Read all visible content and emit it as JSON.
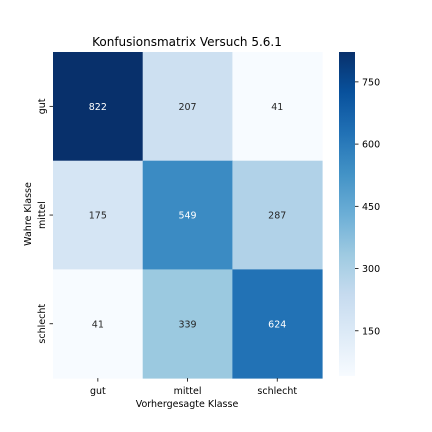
{
  "chart_data": {
    "type": "heatmap",
    "title": "Konfusionsmatrix Versuch 5.6.1",
    "xlabel": "Vorhergesagte Klasse",
    "ylabel": "Wahre Klasse",
    "x_categories": [
      "gut",
      "mittel",
      "schlecht"
    ],
    "y_categories": [
      "gut",
      "mittel",
      "schlecht"
    ],
    "values": [
      [
        822,
        207,
        41
      ],
      [
        175,
        549,
        287
      ],
      [
        41,
        339,
        624
      ]
    ],
    "colormap": "Blues",
    "color_range": [
      41,
      822
    ],
    "colorbar_ticks": [
      150,
      300,
      450,
      600,
      750
    ],
    "colorbar_tick_labels": [
      "150",
      "300",
      "450",
      "600",
      "750"
    ]
  }
}
